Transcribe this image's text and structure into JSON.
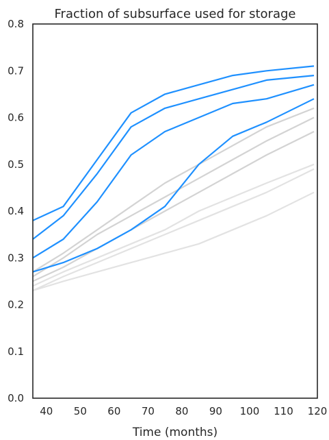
{
  "chart_data": {
    "type": "line",
    "title": "Fraction of subsurface used for storage",
    "xlabel": "Time (months)",
    "ylabel": "",
    "xlim": [
      36,
      120
    ],
    "ylim": [
      0.0,
      0.8
    ],
    "xticks": [
      40,
      50,
      60,
      70,
      80,
      90,
      100,
      110,
      120
    ],
    "yticks": [
      0.0,
      0.1,
      0.2,
      0.3,
      0.4,
      0.5,
      0.6,
      0.7,
      0.8
    ],
    "grid": false,
    "legend": "none",
    "colors": {
      "highlight": "#1e90ff",
      "background": "#d3d3d3",
      "faint": "#e2e2e2"
    },
    "groups": [
      {
        "color": "#e2e2e2",
        "series": [
          {
            "x": [
              36,
              45,
              55,
              65,
              75,
              85,
              95,
              105,
              119
            ],
            "y": [
              0.23,
              0.25,
              0.27,
              0.29,
              0.31,
              0.33,
              0.36,
              0.39,
              0.44
            ]
          },
          {
            "x": [
              36,
              45,
              55,
              65,
              75,
              85,
              95,
              105,
              119
            ],
            "y": [
              0.23,
              0.26,
              0.29,
              0.32,
              0.35,
              0.38,
              0.41,
              0.44,
              0.49
            ]
          },
          {
            "x": [
              36,
              45,
              55,
              65,
              75,
              85,
              95,
              105,
              119
            ],
            "y": [
              0.24,
              0.27,
              0.3,
              0.33,
              0.36,
              0.4,
              0.43,
              0.46,
              0.5
            ]
          }
        ]
      },
      {
        "color": "#d3d3d3",
        "series": [
          {
            "x": [
              36,
              45,
              55,
              65,
              75,
              85,
              95,
              105,
              119
            ],
            "y": [
              0.25,
              0.28,
              0.32,
              0.36,
              0.4,
              0.44,
              0.48,
              0.52,
              0.57
            ]
          },
          {
            "x": [
              36,
              45,
              55,
              65,
              75,
              85,
              95,
              105,
              119
            ],
            "y": [
              0.26,
              0.3,
              0.35,
              0.39,
              0.43,
              0.47,
              0.51,
              0.55,
              0.6
            ]
          },
          {
            "x": [
              36,
              45,
              55,
              65,
              75,
              85,
              95,
              105,
              119
            ],
            "y": [
              0.27,
              0.31,
              0.36,
              0.41,
              0.46,
              0.5,
              0.54,
              0.58,
              0.62
            ]
          }
        ]
      },
      {
        "color": "#1e90ff",
        "series": [
          {
            "x": [
              36,
              45,
              55,
              65,
              75,
              85,
              95,
              105,
              119
            ],
            "y": [
              0.27,
              0.29,
              0.32,
              0.36,
              0.41,
              0.5,
              0.56,
              0.59,
              0.64
            ]
          },
          {
            "x": [
              36,
              45,
              55,
              65,
              75,
              85,
              95,
              105,
              119
            ],
            "y": [
              0.3,
              0.34,
              0.42,
              0.52,
              0.57,
              0.6,
              0.63,
              0.64,
              0.67
            ]
          },
          {
            "x": [
              36,
              45,
              55,
              65,
              75,
              85,
              95,
              105,
              119
            ],
            "y": [
              0.34,
              0.39,
              0.48,
              0.58,
              0.62,
              0.64,
              0.66,
              0.68,
              0.69
            ]
          },
          {
            "x": [
              36,
              45,
              55,
              65,
              75,
              85,
              95,
              105,
              119
            ],
            "y": [
              0.38,
              0.41,
              0.51,
              0.61,
              0.65,
              0.67,
              0.69,
              0.7,
              0.71
            ]
          }
        ]
      }
    ]
  }
}
